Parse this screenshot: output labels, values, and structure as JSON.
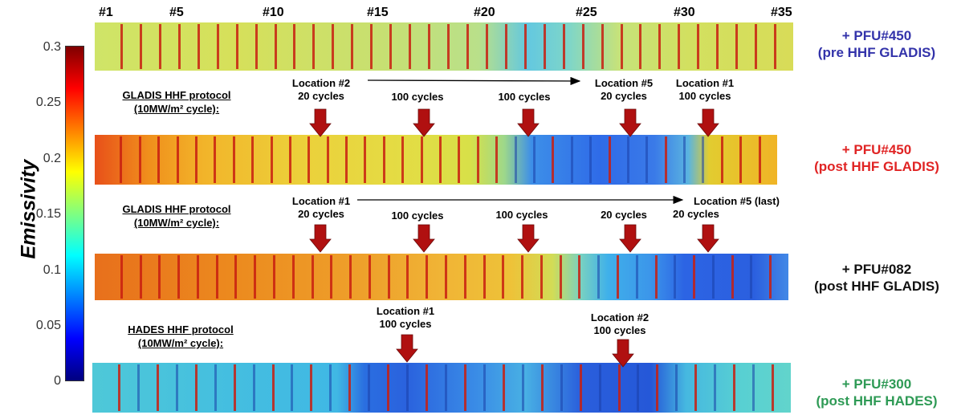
{
  "colorbar": {
    "label": "Emissivity",
    "ticks": [
      "0.3",
      "0.25",
      "0.2",
      "0.15",
      "0.1",
      "0.05",
      "0"
    ],
    "min": 0,
    "max": 0.3
  },
  "tile_numbers": [
    "#1",
    "#5",
    "#10",
    "#15",
    "#20",
    "#25",
    "#30",
    "#35"
  ],
  "protocols": {
    "gladis_1": {
      "line1": "GLADIS HHF protocol",
      "line2": "(10MW/m² cycle):"
    },
    "gladis_2": {
      "line1": "GLADIS HHF protocol",
      "line2": "(10MW/m² cycle):"
    },
    "hades": {
      "line1": "HADES HHF protocol",
      "line2": "(10MW/m² cycle):"
    }
  },
  "strips": [
    {
      "label1": "+ PFU#450",
      "label2": "(pre HHF GLADIS)",
      "label_color": "#3333aa"
    },
    {
      "label1": "+ PFU#450",
      "label2": "(post HHF GLADIS)",
      "label_color": "#e02424"
    },
    {
      "label1": "+ PFU#082",
      "label2": "(post HHF GLADIS)",
      "label_color": "#111111"
    },
    {
      "label1": "+ PFU#300",
      "label2": "(post HHF HADES)",
      "label_color": "#2e9a55"
    }
  ],
  "annotations_1": {
    "a1": "Location #2",
    "a2": "20 cycles",
    "b": "100 cycles",
    "c": "100 cycles",
    "d1": "Location #5",
    "d2": "20 cycles",
    "e1": "Location #1",
    "e2": "100 cycles"
  },
  "annotations_2": {
    "a1": "Location #1",
    "a2": "20 cycles",
    "b": "100 cycles",
    "c": "100 cycles",
    "d": "20 cycles",
    "e1": "Location #5 (last)",
    "e2": "20 cycles"
  },
  "annotations_3": {
    "a1": "Location #1",
    "a2": "100 cycles",
    "b1": "Location #2",
    "b2": "100 cycles"
  },
  "colors": {
    "arrow": "#b01010",
    "black": "#000000"
  }
}
